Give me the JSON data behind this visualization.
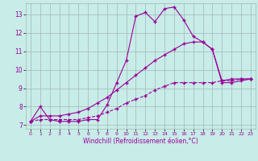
{
  "xlabel": "Windchill (Refroidissement éolien,°C)",
  "bg_color": "#c8ece8",
  "line_color": "#990099",
  "grid_color": "#a0b8b4",
  "xlim": [
    -0.5,
    23.5
  ],
  "ylim": [
    6.8,
    13.6
  ],
  "xticks": [
    0,
    1,
    2,
    3,
    4,
    5,
    6,
    7,
    8,
    9,
    10,
    11,
    12,
    13,
    14,
    15,
    16,
    17,
    18,
    19,
    20,
    21,
    22,
    23
  ],
  "yticks": [
    7,
    8,
    9,
    10,
    11,
    12,
    13
  ],
  "line1_x": [
    0,
    1,
    2,
    3,
    4,
    5,
    6,
    7,
    8,
    9,
    10,
    11,
    12,
    13,
    14,
    15,
    16,
    17,
    18,
    19,
    20,
    21,
    22,
    23
  ],
  "line1_y": [
    7.2,
    8.0,
    7.3,
    7.2,
    7.2,
    7.2,
    7.3,
    7.3,
    8.1,
    9.3,
    10.5,
    12.9,
    13.1,
    12.6,
    13.3,
    13.4,
    12.7,
    11.8,
    11.5,
    11.1,
    9.4,
    9.5,
    9.5,
    9.5
  ],
  "line2_x": [
    0,
    1,
    2,
    3,
    4,
    5,
    6,
    7,
    8,
    9,
    10,
    11,
    12,
    13,
    14,
    15,
    16,
    17,
    18,
    19,
    20,
    21,
    22,
    23
  ],
  "line2_y": [
    7.2,
    7.5,
    7.5,
    7.5,
    7.6,
    7.7,
    7.9,
    8.2,
    8.5,
    8.9,
    9.3,
    9.7,
    10.1,
    10.5,
    10.8,
    11.1,
    11.4,
    11.5,
    11.5,
    11.1,
    9.3,
    9.3,
    9.4,
    9.5
  ],
  "line3_x": [
    0,
    1,
    2,
    3,
    4,
    5,
    6,
    7,
    8,
    9,
    10,
    11,
    12,
    13,
    14,
    15,
    16,
    17,
    18,
    19,
    20,
    21,
    22,
    23
  ],
  "line3_y": [
    7.2,
    7.3,
    7.3,
    7.3,
    7.3,
    7.3,
    7.4,
    7.5,
    7.7,
    7.9,
    8.2,
    8.4,
    8.6,
    8.9,
    9.1,
    9.3,
    9.3,
    9.3,
    9.3,
    9.3,
    9.4,
    9.4,
    9.5,
    9.5
  ]
}
